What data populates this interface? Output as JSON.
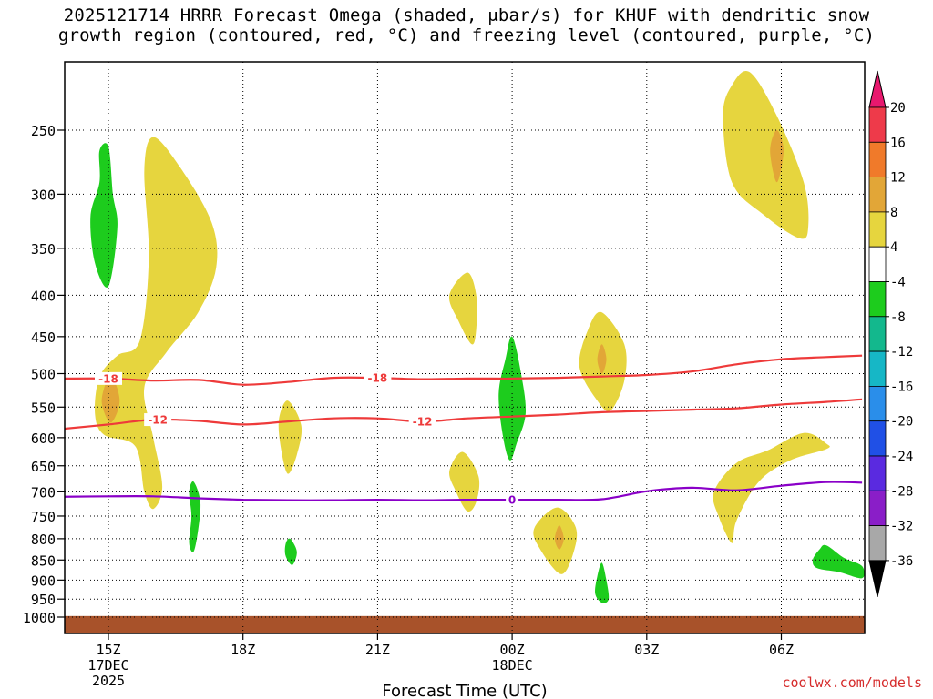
{
  "chart_data": {
    "type": "contour",
    "title_line1": "2025121714 HRRR Forecast Omega (shaded, μbar/s) for KHUF with dendritic snow",
    "title_line2": "growth region (contoured, red, °C) and freezing level (contoured, purple, °C)",
    "xlabel": "Forecast Time (UTC)",
    "credit": "coolwx.com/models",
    "x_range_hours": [
      14.0,
      31.8
    ],
    "y_range_mb": [
      200,
      1030
    ],
    "x_ticks": [
      {
        "hour": 15,
        "lines": [
          "15Z",
          "17DEC",
          "2025"
        ]
      },
      {
        "hour": 18,
        "lines": [
          "18Z"
        ]
      },
      {
        "hour": 21,
        "lines": [
          "21Z"
        ]
      },
      {
        "hour": 24,
        "lines": [
          "00Z",
          "18DEC"
        ]
      },
      {
        "hour": 27,
        "lines": [
          "03Z"
        ]
      },
      {
        "hour": 30,
        "lines": [
          "06Z"
        ]
      }
    ],
    "y_ticks": [
      250,
      300,
      350,
      400,
      450,
      500,
      550,
      600,
      650,
      700,
      750,
      800,
      850,
      900,
      950,
      1000
    ],
    "colorbar": {
      "levels": [
        {
          "label": "20",
          "color": "#ee3a4a"
        },
        {
          "label": "16",
          "color": "#f07a2a"
        },
        {
          "label": "12",
          "color": "#e2a637"
        },
        {
          "label": "8",
          "color": "#e6d53e"
        },
        {
          "label": "4",
          "color": "#ffffff"
        },
        {
          "label": "-4",
          "color": "#1dcc1d"
        },
        {
          "label": "-8",
          "color": "#13b88d"
        },
        {
          "label": "-12",
          "color": "#16b7c6"
        },
        {
          "label": "-16",
          "color": "#2a8eea"
        },
        {
          "label": "-20",
          "color": "#2050e6"
        },
        {
          "label": "-24",
          "color": "#5a2ae0"
        },
        {
          "label": "-28",
          "color": "#8a1ec8"
        },
        {
          "label": "-32",
          "color": "#a8a8a8"
        },
        {
          "label": "-36",
          "color": "#000000"
        }
      ],
      "top_arrow_color": "#e8186e",
      "bottom_arrow_color": "#000000"
    },
    "contours": [
      {
        "name": "-18C isotherm",
        "color": "#ee3a3a",
        "hours": [
          14.0,
          15.0,
          16.0,
          17.0,
          18.0,
          19.0,
          20.0,
          21.0,
          22.0,
          23.0,
          24.0,
          25.0,
          26.0,
          27.0,
          28.0,
          29.0,
          30.0,
          31.0,
          31.8
        ],
        "mb": [
          507,
          507,
          510,
          509,
          516,
          512,
          506,
          506,
          508,
          507,
          507,
          506,
          504,
          502,
          497,
          487,
          480,
          477,
          475
        ],
        "labels": [
          {
            "text": "-18",
            "hour": 15.0,
            "mb": 507
          },
          {
            "text": "-18",
            "hour": 21.0,
            "mb": 506
          }
        ]
      },
      {
        "name": "-12C isotherm",
        "color": "#ee3a3a",
        "hours": [
          14.0,
          15.0,
          16.0,
          17.0,
          18.0,
          19.0,
          20.0,
          21.0,
          22.0,
          23.0,
          24.0,
          25.0,
          26.0,
          27.0,
          28.0,
          29.0,
          30.0,
          31.0,
          31.8
        ],
        "mb": [
          585,
          578,
          570,
          572,
          578,
          573,
          568,
          568,
          573,
          568,
          565,
          562,
          558,
          556,
          554,
          552,
          546,
          542,
          538
        ],
        "labels": [
          {
            "text": "-12",
            "hour": 16.1,
            "mb": 570
          },
          {
            "text": "-12",
            "hour": 22.0,
            "mb": 573
          }
        ]
      },
      {
        "name": "0C freezing level",
        "color": "#8a00c8",
        "hours": [
          14.0,
          15.0,
          16.0,
          17.0,
          18.0,
          19.0,
          20.0,
          21.0,
          22.0,
          23.0,
          24.0,
          25.0,
          26.0,
          27.0,
          28.0,
          29.0,
          30.0,
          31.0,
          31.8
        ],
        "mb": [
          710,
          709,
          709,
          713,
          716,
          717,
          717,
          716,
          717,
          716,
          716,
          716,
          715,
          699,
          692,
          697,
          688,
          681,
          682
        ],
        "labels": [
          {
            "text": "0",
            "hour": 24.0,
            "mb": 716
          }
        ]
      }
    ],
    "omega_regions": [
      {
        "name": "yellow-band-15z",
        "class": "4 to 8",
        "color": "#e6d53e",
        "pts": [
          [
            16.0,
            255
          ],
          [
            16.6,
            278
          ],
          [
            17.3,
            325
          ],
          [
            17.4,
            370
          ],
          [
            17.0,
            420
          ],
          [
            16.3,
            470
          ],
          [
            15.8,
            520
          ],
          [
            16.0,
            600
          ],
          [
            16.2,
            690
          ],
          [
            16.0,
            735
          ],
          [
            15.8,
            700
          ],
          [
            15.6,
            615
          ],
          [
            14.9,
            595
          ],
          [
            14.7,
            560
          ],
          [
            14.8,
            505
          ],
          [
            15.2,
            475
          ],
          [
            15.7,
            455
          ],
          [
            15.9,
            360
          ],
          [
            15.8,
            280
          ]
        ]
      },
      {
        "name": "orange-core-15z",
        "class": "8 to 12",
        "color": "#e2a637",
        "pts": [
          [
            15.05,
            503
          ],
          [
            15.25,
            540
          ],
          [
            15.05,
            575
          ],
          [
            14.85,
            540
          ]
        ]
      },
      {
        "name": "yellow-cell-19z",
        "class": "4 to 8",
        "color": "#e6d53e",
        "pts": [
          [
            19.0,
            540
          ],
          [
            19.3,
            580
          ],
          [
            19.2,
            630
          ],
          [
            19.0,
            665
          ],
          [
            18.85,
            620
          ],
          [
            18.8,
            570
          ]
        ]
      },
      {
        "name": "yellow-cell-23z-upper",
        "class": "4 to 8",
        "color": "#e6d53e",
        "pts": [
          [
            23.0,
            375
          ],
          [
            23.2,
            400
          ],
          [
            23.2,
            440
          ],
          [
            23.1,
            460
          ],
          [
            22.8,
            430
          ],
          [
            22.6,
            400
          ]
        ]
      },
      {
        "name": "yellow-cell-23z-lower",
        "class": "4 to 8",
        "color": "#e6d53e",
        "pts": [
          [
            22.9,
            625
          ],
          [
            23.25,
            670
          ],
          [
            23.2,
            720
          ],
          [
            23.0,
            740
          ],
          [
            22.75,
            700
          ],
          [
            22.6,
            660
          ]
        ]
      },
      {
        "name": "yellow-cell-25z",
        "class": "4 to 8",
        "color": "#e6d53e",
        "pts": [
          [
            25.0,
            732
          ],
          [
            25.4,
            770
          ],
          [
            25.4,
            820
          ],
          [
            25.1,
            885
          ],
          [
            24.6,
            820
          ],
          [
            24.5,
            775
          ]
        ]
      },
      {
        "name": "orange-core-25z",
        "class": "8 to 12",
        "color": "#e2a637",
        "pts": [
          [
            25.05,
            770
          ],
          [
            25.15,
            800
          ],
          [
            25.05,
            825
          ],
          [
            24.95,
            800
          ]
        ]
      },
      {
        "name": "yellow-cell-26z",
        "class": "4 to 8",
        "color": "#e6d53e",
        "pts": [
          [
            26.0,
            420
          ],
          [
            26.5,
            460
          ],
          [
            26.5,
            510
          ],
          [
            26.2,
            555
          ],
          [
            25.9,
            540
          ],
          [
            25.5,
            490
          ],
          [
            25.7,
            440
          ]
        ]
      },
      {
        "name": "orange-core-26z",
        "class": "8 to 12",
        "color": "#e2a637",
        "pts": [
          [
            26.0,
            460
          ],
          [
            26.1,
            480
          ],
          [
            26.0,
            500
          ],
          [
            25.9,
            480
          ]
        ]
      },
      {
        "name": "yellow-cell-30z-upper",
        "class": "4 to 8",
        "color": "#e6d53e",
        "pts": [
          [
            29.3,
            212
          ],
          [
            29.9,
            240
          ],
          [
            30.5,
            290
          ],
          [
            30.6,
            330
          ],
          [
            30.4,
            340
          ],
          [
            29.6,
            318
          ],
          [
            28.9,
            290
          ],
          [
            28.7,
            240
          ],
          [
            28.9,
            220
          ]
        ]
      },
      {
        "name": "orange-core-30z",
        "class": "8 to 12",
        "color": "#e2a637",
        "pts": [
          [
            29.9,
            250
          ],
          [
            30.05,
            265
          ],
          [
            29.9,
            290
          ],
          [
            29.75,
            265
          ]
        ]
      },
      {
        "name": "yellow-cell-30z-lower",
        "class": "4 to 8",
        "color": "#e6d53e",
        "pts": [
          [
            30.5,
            592
          ],
          [
            31.0,
            610
          ],
          [
            31.0,
            620
          ],
          [
            30.2,
            640
          ],
          [
            29.5,
            680
          ],
          [
            29.0,
            760
          ],
          [
            28.9,
            810
          ],
          [
            28.6,
            750
          ],
          [
            28.5,
            700
          ],
          [
            29.0,
            645
          ],
          [
            29.7,
            622
          ]
        ]
      },
      {
        "name": "green-cell-15z-upper",
        "class": "-4 to -8",
        "color": "#1dcc1d",
        "pts": [
          [
            15.0,
            262
          ],
          [
            15.1,
            300
          ],
          [
            15.2,
            330
          ],
          [
            15.0,
            390
          ],
          [
            14.7,
            365
          ],
          [
            14.6,
            320
          ],
          [
            14.8,
            290
          ],
          [
            14.8,
            265
          ]
        ]
      },
      {
        "name": "green-cell-17z",
        "class": "-4 to -8",
        "color": "#1dcc1d",
        "pts": [
          [
            16.9,
            680
          ],
          [
            17.05,
            720
          ],
          [
            17.0,
            780
          ],
          [
            16.9,
            830
          ],
          [
            16.8,
            810
          ],
          [
            16.85,
            750
          ],
          [
            16.8,
            700
          ]
        ]
      },
      {
        "name": "green-cell-19z",
        "class": "-4 to -8",
        "color": "#1dcc1d",
        "pts": [
          [
            19.05,
            800
          ],
          [
            19.2,
            830
          ],
          [
            19.1,
            862
          ],
          [
            18.95,
            840
          ],
          [
            18.95,
            812
          ]
        ]
      },
      {
        "name": "green-cell-24z",
        "class": "-4 to -8",
        "color": "#1dcc1d",
        "pts": [
          [
            24.0,
            450
          ],
          [
            24.2,
            500
          ],
          [
            24.3,
            560
          ],
          [
            24.1,
            610
          ],
          [
            23.95,
            640
          ],
          [
            23.8,
            600
          ],
          [
            23.7,
            530
          ],
          [
            23.85,
            480
          ]
        ]
      },
      {
        "name": "green-cell-26z",
        "class": "-4 to -8",
        "color": "#1dcc1d",
        "pts": [
          [
            26.0,
            857
          ],
          [
            26.1,
            900
          ],
          [
            26.15,
            950
          ],
          [
            26.0,
            960
          ],
          [
            25.85,
            935
          ],
          [
            25.9,
            890
          ]
        ]
      },
      {
        "name": "green-cell-31z",
        "class": "-4 to -8",
        "color": "#1dcc1d",
        "pts": [
          [
            31.0,
            815
          ],
          [
            31.4,
            845
          ],
          [
            31.8,
            865
          ],
          [
            31.8,
            895
          ],
          [
            31.3,
            880
          ],
          [
            30.8,
            870
          ],
          [
            30.7,
            850
          ],
          [
            30.85,
            825
          ]
        ]
      }
    ],
    "ground": {
      "color": "#a8522a",
      "top_mb": 997
    }
  }
}
